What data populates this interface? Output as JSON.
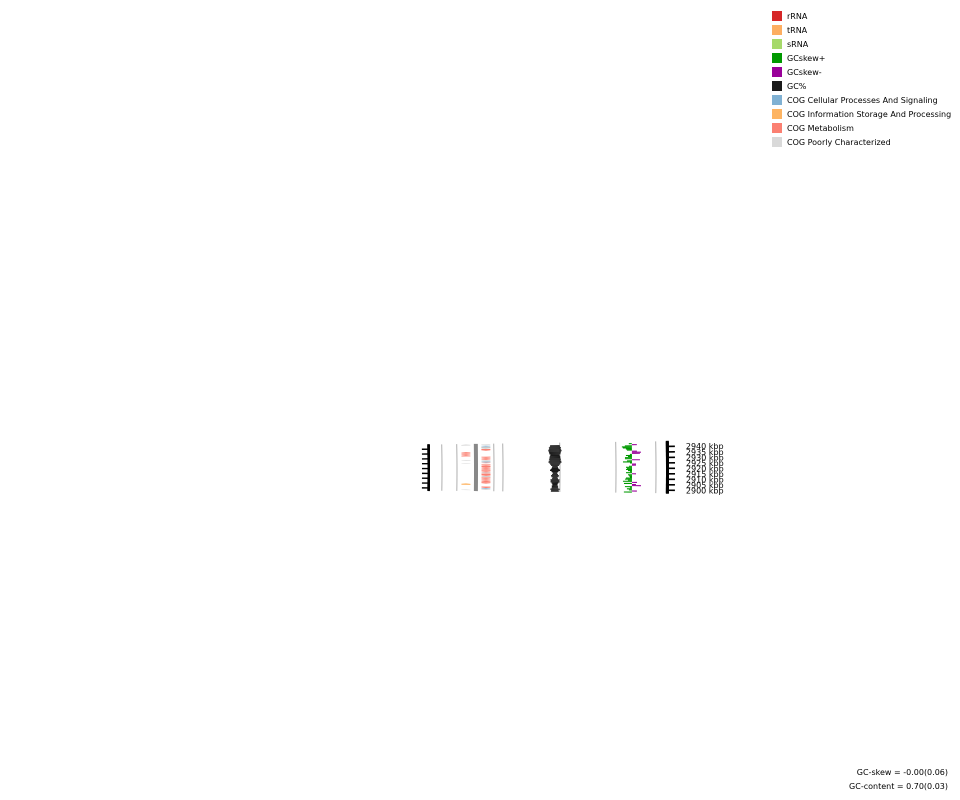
{
  "chart_data": {
    "type": "circular-genome-map",
    "visible_range_kbp": [
      2898,
      2942
    ],
    "tick_labels": [
      {
        "kbp": 2900,
        "label": "2900 kbp"
      },
      {
        "kbp": 2905,
        "label": "2905 kbp"
      },
      {
        "kbp": 2910,
        "label": "2910 kbp"
      },
      {
        "kbp": 2915,
        "label": "2915 kbp"
      },
      {
        "kbp": 2920,
        "label": "2920 kbp"
      },
      {
        "kbp": 2925,
        "label": "2925 kbp"
      },
      {
        "kbp": 2930,
        "label": "2930 kbp"
      },
      {
        "kbp": 2935,
        "label": "2935 kbp"
      },
      {
        "kbp": 2940,
        "label": "2940 kbp"
      }
    ],
    "features": {
      "note": "strand track: outer/inner; cat: metabolism, poorly, cellular, info",
      "list": [
        {
          "strand": "inner",
          "start": 2898.2,
          "end": 2898.7,
          "cat": "poorly"
        },
        {
          "strand": "outer",
          "start": 2898.8,
          "end": 2899.4,
          "cat": "poorly"
        },
        {
          "strand": "outer",
          "start": 2899.5,
          "end": 2900.3,
          "cat": "cellular"
        },
        {
          "strand": "outer",
          "start": 2900.5,
          "end": 2901.9,
          "cat": "metabolism"
        },
        {
          "strand": "inner",
          "start": 2903.5,
          "end": 2905.0,
          "cat": "info"
        },
        {
          "strand": "outer",
          "start": 2904.9,
          "end": 2906.3,
          "cat": "metabolism"
        },
        {
          "strand": "outer",
          "start": 2906.4,
          "end": 2907.7,
          "cat": "metabolism"
        },
        {
          "strand": "outer",
          "start": 2907.9,
          "end": 2908.8,
          "cat": "metabolism"
        },
        {
          "strand": "outer",
          "start": 2909.0,
          "end": 2909.8,
          "cat": "metabolism"
        },
        {
          "strand": "outer",
          "start": 2909.9,
          "end": 2911.1,
          "cat": "metabolism"
        },
        {
          "strand": "outer",
          "start": 2911.3,
          "end": 2912.4,
          "cat": "poorly"
        },
        {
          "strand": "outer",
          "start": 2912.6,
          "end": 2915.0,
          "cat": "metabolism"
        },
        {
          "strand": "outer",
          "start": 2915.2,
          "end": 2916.0,
          "cat": "poorly"
        },
        {
          "strand": "outer",
          "start": 2916.1,
          "end": 2916.7,
          "cat": "metabolism"
        },
        {
          "strand": "outer",
          "start": 2916.9,
          "end": 2918.2,
          "cat": "metabolism"
        },
        {
          "strand": "outer",
          "start": 2918.4,
          "end": 2919.2,
          "cat": "metabolism"
        },
        {
          "strand": "outer",
          "start": 2919.4,
          "end": 2920.2,
          "cat": "metabolism"
        },
        {
          "strand": "outer",
          "start": 2920.3,
          "end": 2921.0,
          "cat": "metabolism"
        },
        {
          "strand": "outer",
          "start": 2921.1,
          "end": 2922.6,
          "cat": "metabolism"
        },
        {
          "strand": "outer",
          "start": 2922.8,
          "end": 2924.1,
          "cat": "metabolism"
        },
        {
          "strand": "inner",
          "start": 2924.7,
          "end": 2925.1,
          "cat": "poorly"
        },
        {
          "strand": "outer",
          "start": 2925.3,
          "end": 2925.8,
          "cat": "metabolism"
        },
        {
          "strand": "outer",
          "start": 2926.0,
          "end": 2926.8,
          "cat": "cellular"
        },
        {
          "strand": "outer",
          "start": 2926.9,
          "end": 2927.6,
          "cat": "poorly"
        },
        {
          "strand": "outer",
          "start": 2927.8,
          "end": 2928.3,
          "cat": "poorly"
        },
        {
          "strand": "inner",
          "start": 2928.0,
          "end": 2928.5,
          "cat": "poorly"
        },
        {
          "strand": "outer",
          "start": 2928.6,
          "end": 2929.8,
          "cat": "metabolism"
        },
        {
          "strand": "outer",
          "start": 2929.9,
          "end": 2930.9,
          "cat": "metabolism"
        },
        {
          "strand": "outer",
          "start": 2931.0,
          "end": 2931.8,
          "cat": "metabolism"
        },
        {
          "strand": "inner",
          "start": 2932.2,
          "end": 2933.5,
          "cat": "metabolism"
        },
        {
          "strand": "inner",
          "start": 2933.7,
          "end": 2934.5,
          "cat": "metabolism"
        },
        {
          "strand": "inner",
          "start": 2934.6,
          "end": 2935.5,
          "cat": "metabolism"
        },
        {
          "strand": "inner",
          "start": 2935.6,
          "end": 2936.6,
          "cat": "metabolism"
        },
        {
          "strand": "outer",
          "start": 2937.8,
          "end": 2939.5,
          "cat": "metabolism"
        },
        {
          "strand": "outer",
          "start": 2939.7,
          "end": 2941.7,
          "cat": "poorly"
        },
        {
          "strand": "outer",
          "start": 2941.9,
          "end": 2942.7,
          "cat": "cellular"
        },
        {
          "strand": "inner",
          "start": 2943.3,
          "end": 2944.2,
          "cat": "poorly"
        },
        {
          "strand": "outer",
          "start": 2943.3,
          "end": 2944.0,
          "cat": "poorly"
        }
      ]
    },
    "gc_content_profile": [
      {
        "kbp": 2898,
        "v": 0.4
      },
      {
        "kbp": 2899,
        "v": 0.35
      },
      {
        "kbp": 2900,
        "v": 0.55
      },
      {
        "kbp": 2901,
        "v": 0.3
      },
      {
        "kbp": 2902,
        "v": 0.2
      },
      {
        "kbp": 2903,
        "v": 0.25
      },
      {
        "kbp": 2904,
        "v": 0.1
      },
      {
        "kbp": 2905,
        "v": 0.15
      },
      {
        "kbp": 2906,
        "v": 0.3
      },
      {
        "kbp": 2907,
        "v": 0.5
      },
      {
        "kbp": 2908,
        "v": 0.45
      },
      {
        "kbp": 2909,
        "v": 0.5
      },
      {
        "kbp": 2910,
        "v": 0.2
      },
      {
        "kbp": 2911,
        "v": 0.1
      },
      {
        "kbp": 2912,
        "v": 0.3
      },
      {
        "kbp": 2913,
        "v": 0.4
      },
      {
        "kbp": 2914,
        "v": 0.2
      },
      {
        "kbp": 2915,
        "v": 0.05
      },
      {
        "kbp": 2916,
        "v": 0.1
      },
      {
        "kbp": 2917,
        "v": 0.3
      },
      {
        "kbp": 2918,
        "v": 0.6
      },
      {
        "kbp": 2919,
        "v": 0.5
      },
      {
        "kbp": 2920,
        "v": 0.3
      },
      {
        "kbp": 2921,
        "v": 0.2
      },
      {
        "kbp": 2922,
        "v": 0.15
      },
      {
        "kbp": 2923,
        "v": 0.4
      },
      {
        "kbp": 2924,
        "v": 0.55
      },
      {
        "kbp": 2925,
        "v": 0.7
      },
      {
        "kbp": 2926,
        "v": 0.9
      },
      {
        "kbp": 2927,
        "v": 0.85
      },
      {
        "kbp": 2928,
        "v": 0.7
      },
      {
        "kbp": 2929,
        "v": 0.8
      },
      {
        "kbp": 2930,
        "v": 0.65
      },
      {
        "kbp": 2931,
        "v": 0.7
      },
      {
        "kbp": 2932,
        "v": 0.6
      },
      {
        "kbp": 2933,
        "v": 0.5
      },
      {
        "kbp": 2934,
        "v": 0.7
      },
      {
        "kbp": 2935,
        "v": 0.75
      },
      {
        "kbp": 2936,
        "v": 0.8
      },
      {
        "kbp": 2937,
        "v": 0.95
      },
      {
        "kbp": 2938,
        "v": 0.85
      },
      {
        "kbp": 2939,
        "v": 0.75
      },
      {
        "kbp": 2940,
        "v": 0.8
      },
      {
        "kbp": 2941,
        "v": 0.6
      },
      {
        "kbp": 2942,
        "v": 0.55
      }
    ],
    "gc_skew_profile": [
      {
        "kbp": 2898,
        "v": 0.8
      },
      {
        "kbp": 2899,
        "v": -0.5
      },
      {
        "kbp": 2900,
        "v": 0.3
      },
      {
        "kbp": 2901,
        "v": 0.5
      },
      {
        "kbp": 2902,
        "v": 0.2
      },
      {
        "kbp": 2903,
        "v": 0.7
      },
      {
        "kbp": 2904,
        "v": -0.9
      },
      {
        "kbp": 2905,
        "v": -0.4
      },
      {
        "kbp": 2906,
        "v": 0.8
      },
      {
        "kbp": 2907,
        "v": -0.5
      },
      {
        "kbp": 2908,
        "v": 0.9
      },
      {
        "kbp": 2909,
        "v": 0.4
      },
      {
        "kbp": 2910,
        "v": 0.7
      },
      {
        "kbp": 2911,
        "v": 0.6
      },
      {
        "kbp": 2912,
        "v": 0.2
      },
      {
        "kbp": 2913,
        "v": 0.3
      },
      {
        "kbp": 2914,
        "v": 0.4
      },
      {
        "kbp": 2915,
        "v": -0.4
      },
      {
        "kbp": 2916,
        "v": 0.6
      },
      {
        "kbp": 2917,
        "v": 0.2
      },
      {
        "kbp": 2918,
        "v": 0.4
      },
      {
        "kbp": 2919,
        "v": 0.6
      },
      {
        "kbp": 2920,
        "v": 0.5
      },
      {
        "kbp": 2921,
        "v": 0.6
      },
      {
        "kbp": 2922,
        "v": 0.3
      },
      {
        "kbp": 2923,
        "v": -0.4
      },
      {
        "kbp": 2924,
        "v": -0.4
      },
      {
        "kbp": 2925,
        "v": 0.2
      },
      {
        "kbp": 2926,
        "v": 0.9
      },
      {
        "kbp": 2927,
        "v": 0.5
      },
      {
        "kbp": 2928,
        "v": -0.8
      },
      {
        "kbp": 2929,
        "v": 0.7
      },
      {
        "kbp": 2930,
        "v": 0.7
      },
      {
        "kbp": 2931,
        "v": 0.4
      },
      {
        "kbp": 2932,
        "v": 0.6
      },
      {
        "kbp": 2933,
        "v": 0.2
      },
      {
        "kbp": 2934,
        "v": -0.8
      },
      {
        "kbp": 2935,
        "v": -0.9
      },
      {
        "kbp": 2936,
        "v": -0.5
      },
      {
        "kbp": 2937,
        "v": 0.5
      },
      {
        "kbp": 2938,
        "v": 0.6
      },
      {
        "kbp": 2939,
        "v": 0.9
      },
      {
        "kbp": 2940,
        "v": 1.0
      },
      {
        "kbp": 2941,
        "v": 0.7
      },
      {
        "kbp": 2942,
        "v": -0.5
      },
      {
        "kbp": 2943,
        "v": 0.3
      }
    ]
  },
  "legend": [
    {
      "label": "rRNA",
      "color": "#d62728"
    },
    {
      "label": "tRNA",
      "color": "#fdae61"
    },
    {
      "label": "sRNA",
      "color": "#a6d96a"
    },
    {
      "label": "GCskew+",
      "color": "#009900"
    },
    {
      "label": "GCskew-",
      "color": "#990099"
    },
    {
      "label": "GC%",
      "color": "#1a1a1a"
    },
    {
      "label": "COG Cellular Processes And Signaling",
      "color": "#80b1d3"
    },
    {
      "label": "COG Information Storage And Processing",
      "color": "#fdb462"
    },
    {
      "label": "COG Metabolism",
      "color": "#fb8072"
    },
    {
      "label": "COG Poorly Characterized",
      "color": "#d9d9d9"
    }
  ],
  "feature_colors": {
    "metabolism": "#fb8072",
    "poorly": "#c8c8c8",
    "cellular": "#80b1d3",
    "info": "#fdb462"
  },
  "stats": {
    "gc_skew": "GC-skew = -0.00(0.06)",
    "gc_content": "GC-content = 0.70(0.03)"
  }
}
